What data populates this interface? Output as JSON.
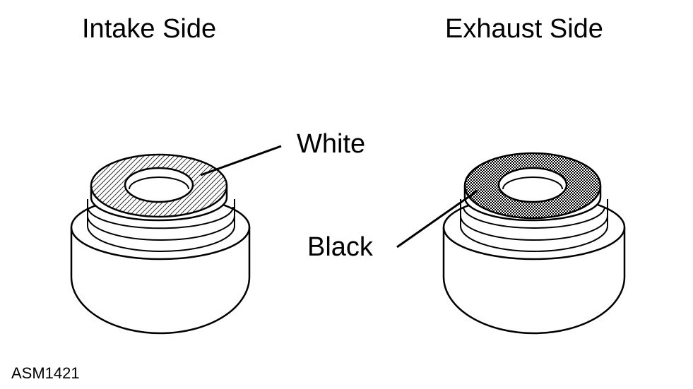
{
  "figure": {
    "intake_title": "Intake Side",
    "exhaust_title": "Exhaust Side",
    "callout_white": "White",
    "callout_black": "Black",
    "figure_code": "ASM1421"
  },
  "colors": {
    "line": "#000000",
    "background": "#ffffff"
  }
}
